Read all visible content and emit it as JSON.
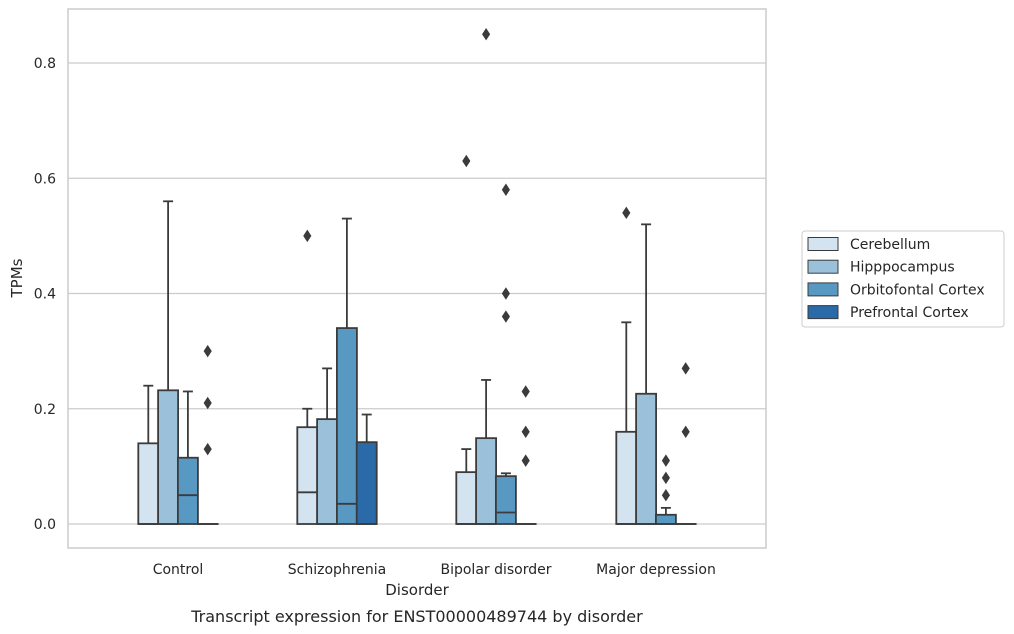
{
  "chart_data": {
    "type": "box",
    "title": "Transcript expression for ENST00000489744 by disorder",
    "xlabel": "Disorder",
    "ylabel": "TPMs",
    "ylim": [
      -0.04,
      0.895
    ],
    "yticks": [
      0.0,
      0.2,
      0.4,
      0.6,
      0.8
    ],
    "ytick_labels": [
      "0.0",
      "0.2",
      "0.4",
      "0.6",
      "0.8"
    ],
    "grid": "horizontal",
    "legend_position": "right",
    "categories": [
      "Control",
      "Schizophrenia",
      "Bipolar disorder",
      "Major depression"
    ],
    "series": [
      {
        "name": "Cerebellum",
        "color": "#d3e3f0",
        "boxes": [
          {
            "q1": 0.0,
            "median": 0.0,
            "q3": 0.14,
            "whisker_low": 0.0,
            "whisker_high": 0.24,
            "outliers": []
          },
          {
            "q1": 0.0,
            "median": 0.055,
            "q3": 0.168,
            "whisker_low": 0.0,
            "whisker_high": 0.2,
            "outliers": [
              0.5
            ]
          },
          {
            "q1": 0.0,
            "median": 0.0,
            "q3": 0.09,
            "whisker_low": 0.0,
            "whisker_high": 0.13,
            "outliers": [
              0.63
            ]
          },
          {
            "q1": 0.0,
            "median": 0.0,
            "q3": 0.16,
            "whisker_low": 0.0,
            "whisker_high": 0.35,
            "outliers": [
              0.54
            ]
          }
        ]
      },
      {
        "name": "Hipppocampus",
        "color": "#9ac1d9",
        "boxes": [
          {
            "q1": 0.0,
            "median": 0.0,
            "q3": 0.232,
            "whisker_low": 0.0,
            "whisker_high": 0.56,
            "outliers": []
          },
          {
            "q1": 0.0,
            "median": 0.0,
            "q3": 0.182,
            "whisker_low": 0.0,
            "whisker_high": 0.27,
            "outliers": []
          },
          {
            "q1": 0.0,
            "median": 0.0,
            "q3": 0.149,
            "whisker_low": 0.0,
            "whisker_high": 0.25,
            "outliers": [
              0.85
            ]
          },
          {
            "q1": 0.0,
            "median": 0.0,
            "q3": 0.226,
            "whisker_low": 0.0,
            "whisker_high": 0.52,
            "outliers": []
          }
        ]
      },
      {
        "name": "Orbitofontal Cortex",
        "color": "#5899c3",
        "boxes": [
          {
            "q1": 0.0,
            "median": 0.05,
            "q3": 0.115,
            "whisker_low": 0.0,
            "whisker_high": 0.23,
            "outliers": []
          },
          {
            "q1": 0.0,
            "median": 0.035,
            "q3": 0.34,
            "whisker_low": 0.0,
            "whisker_high": 0.53,
            "outliers": []
          },
          {
            "q1": 0.0,
            "median": 0.02,
            "q3": 0.083,
            "whisker_low": 0.0,
            "whisker_high": 0.088,
            "outliers": [
              0.58,
              0.4,
              0.36
            ]
          },
          {
            "q1": 0.0,
            "median": 0.0,
            "q3": 0.016,
            "whisker_low": 0.0,
            "whisker_high": 0.028,
            "outliers": [
              0.11,
              0.08,
              0.05
            ]
          }
        ]
      },
      {
        "name": "Prefrontal Cortex",
        "color": "#2a6aa8",
        "boxes": [
          {
            "q1": 0.0,
            "median": 0.0,
            "q3": 0.0,
            "whisker_low": 0.0,
            "whisker_high": 0.0,
            "outliers": [
              0.3,
              0.21,
              0.13
            ]
          },
          {
            "q1": 0.0,
            "median": 0.0,
            "q3": 0.142,
            "whisker_low": 0.0,
            "whisker_high": 0.19,
            "outliers": []
          },
          {
            "q1": 0.0,
            "median": 0.0,
            "q3": 0.0,
            "whisker_low": 0.0,
            "whisker_high": 0.0,
            "outliers": [
              0.23,
              0.16,
              0.11
            ]
          },
          {
            "q1": 0.0,
            "median": 0.0,
            "q3": 0.0,
            "whisker_low": 0.0,
            "whisker_high": 0.0,
            "outliers": [
              0.27,
              0.16
            ]
          }
        ]
      }
    ],
    "colors": {
      "grid": "#cccccc",
      "frame": "#cccccc",
      "box_edge": "#3b3b3b",
      "text": "#262626"
    }
  }
}
